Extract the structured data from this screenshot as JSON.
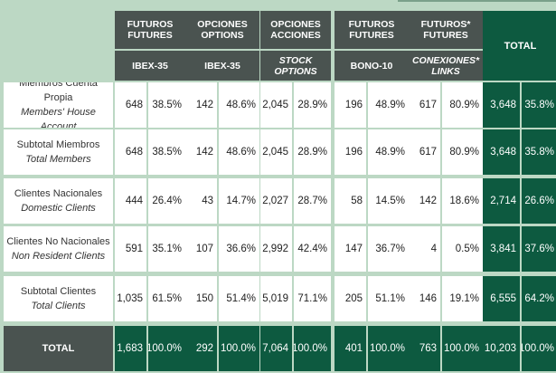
{
  "header": {
    "groups": [
      {
        "line1": "FUTUROS",
        "line2": "FUTURES",
        "sub1": "IBEX-35",
        "sub2": "",
        "sub_italic": false
      },
      {
        "line1": "OPCIONES",
        "line2": "OPTIONS",
        "sub1": "IBEX-35",
        "sub2": "",
        "sub_italic": false
      },
      {
        "line1": "OPCIONES",
        "line2": "ACCIONES",
        "sub1": "STOCK",
        "sub2": "OPTIONS",
        "sub_italic": true
      },
      {
        "line1": "FUTUROS",
        "line2": "FUTURES",
        "sub1": "BONO-10",
        "sub2": "",
        "sub_italic": false
      },
      {
        "line1": "FUTUROS*",
        "line2": "FUTURES",
        "sub1": "CONEXIONES*",
        "sub2": "LINKS",
        "sub_italic": true
      }
    ],
    "total_label": "TOTAL"
  },
  "rows": [
    {
      "es": "Miembros Cuenta Propia",
      "en": "Members' House Account",
      "cells": [
        [
          "648",
          "38.5%"
        ],
        [
          "142",
          "48.6%"
        ],
        [
          "2,045",
          "28.9%"
        ],
        [
          "196",
          "48.9%"
        ],
        [
          "617",
          "80.9%"
        ]
      ],
      "total": [
        "3,648",
        "35.8%"
      ]
    },
    {
      "es": "Subtotal Miembros",
      "en": "Total Members",
      "cells": [
        [
          "648",
          "38.5%"
        ],
        [
          "142",
          "48.6%"
        ],
        [
          "2,045",
          "28.9%"
        ],
        [
          "196",
          "48.9%"
        ],
        [
          "617",
          "80.9%"
        ]
      ],
      "total": [
        "3,648",
        "35.8%"
      ]
    },
    {
      "es": "Clientes Nacionales",
      "en": "Domestic Clients",
      "cells": [
        [
          "444",
          "26.4%"
        ],
        [
          "43",
          "14.7%"
        ],
        [
          "2,027",
          "28.7%"
        ],
        [
          "58",
          "14.5%"
        ],
        [
          "142",
          "18.6%"
        ]
      ],
      "total": [
        "2,714",
        "26.6%"
      ]
    },
    {
      "es": "Clientes No Nacionales",
      "en": "Non Resident Clients",
      "cells": [
        [
          "591",
          "35.1%"
        ],
        [
          "107",
          "36.6%"
        ],
        [
          "2,992",
          "42.4%"
        ],
        [
          "147",
          "36.7%"
        ],
        [
          "4",
          "0.5%"
        ]
      ],
      "total": [
        "3,841",
        "37.6%"
      ]
    },
    {
      "es": "Subtotal Clientes",
      "en": "Total Clients",
      "cells": [
        [
          "1,035",
          "61.5%"
        ],
        [
          "150",
          "51.4%"
        ],
        [
          "5,019",
          "71.1%"
        ],
        [
          "205",
          "51.1%"
        ],
        [
          "146",
          "19.1%"
        ]
      ],
      "total": [
        "6,555",
        "64.2%"
      ]
    }
  ],
  "total_row": {
    "label": "TOTAL",
    "cells": [
      [
        "1,683",
        "100.0%"
      ],
      [
        "292",
        "100.0%"
      ],
      [
        "7,064",
        "100.0%"
      ],
      [
        "401",
        "100.0%"
      ],
      [
        "763",
        "100.0%"
      ]
    ],
    "total": [
      "10,203",
      "100.0%"
    ]
  },
  "colors": {
    "dark_header": "#4a5350",
    "green": "#0d5a40",
    "background": "#bcd8c4"
  }
}
